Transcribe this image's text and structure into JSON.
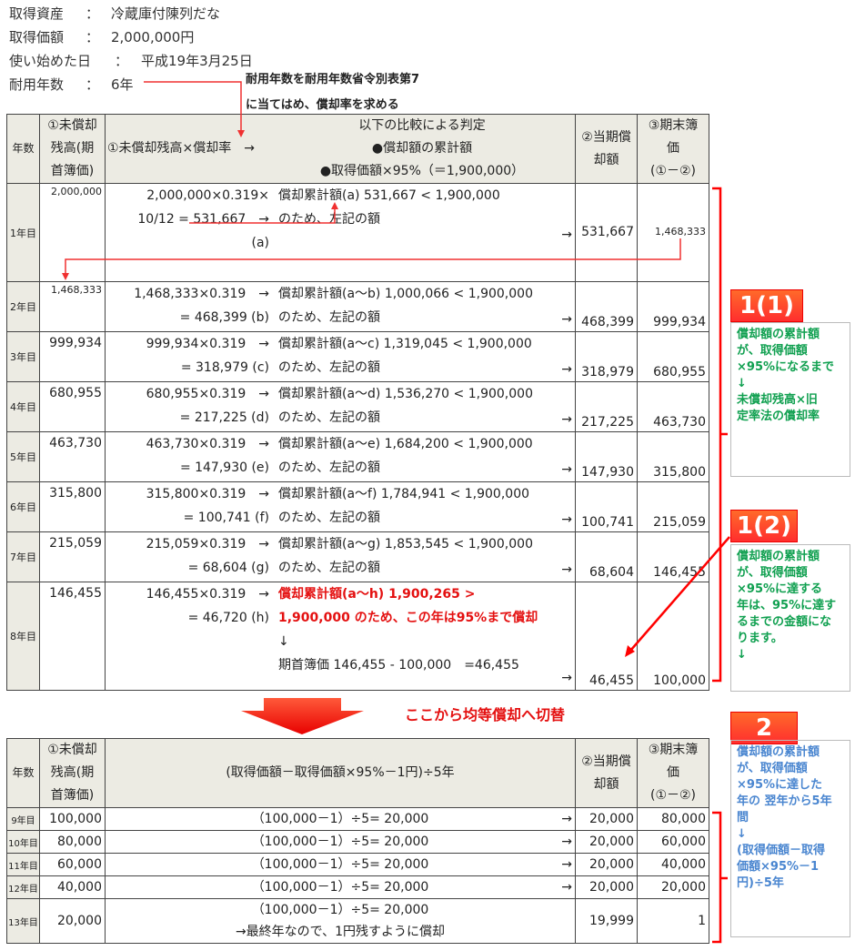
{
  "info": [
    {
      "label": "取得資産",
      "sep": "：",
      "value": "冷蔵庫付陳列だな"
    },
    {
      "label": "取得価額",
      "sep": "：",
      "value": "2,000,000円"
    },
    {
      "label": "使い始めた日",
      "sep": "：",
      "value": "平成19年3月25日"
    },
    {
      "label": "耐用年数",
      "sep": "：",
      "value": "6年"
    }
  ],
  "note": {
    "line1": "耐用年数を耐用年数省令別表第7",
    "line2": "に当てはめ、償却率を求める"
  },
  "table1": {
    "headers": {
      "year": "年数",
      "col1": [
        "①未償却",
        "残高(期",
        "首簿価)"
      ],
      "calc": "①未償却残高×償却率　→",
      "judge": [
        "以下の比較による判定",
        "●償却額の累計額",
        "●取得価額×95%（＝1,900,000）"
      ],
      "col2": [
        "②当期償",
        "却額"
      ],
      "col3": [
        "③期末簿",
        "価",
        "(①－②)"
      ]
    },
    "rows": [
      {
        "year": "1年目",
        "col1": "2,000,000",
        "calc": [
          "2,000,000×0.319×",
          "10/12 = 531,667　→",
          "(a)"
        ],
        "judge": [
          "償却累計額(a) 531,667 < 1,900,000",
          "のため、左記の額"
        ],
        "arrow": "→",
        "col2": "531,667",
        "col3": "1,468,333"
      },
      {
        "year": "2年目",
        "col1": "1,468,333",
        "calc": [
          "1,468,333×0.319　→",
          "= 468,399 (b)"
        ],
        "judge": [
          "償却累計額(a～b) 1,000,066 < 1,900,000",
          "のため、左記の額"
        ],
        "arrow": "→",
        "col2": "468,399",
        "col3": "999,934"
      },
      {
        "year": "3年目",
        "col1": "999,934",
        "calc": [
          "999,934×0.319　→",
          "= 318,979 (c)"
        ],
        "judge": [
          "償却累計額(a～c) 1,319,045 < 1,900,000",
          "のため、左記の額"
        ],
        "arrow": "→",
        "col2": "318,979",
        "col3": "680,955"
      },
      {
        "year": "4年目",
        "col1": "680,955",
        "calc": [
          "680,955×0.319　→",
          "= 217,225 (d)"
        ],
        "judge": [
          "償却累計額(a～d) 1,536,270 < 1,900,000",
          "のため、左記の額"
        ],
        "arrow": "→",
        "col2": "217,225",
        "col3": "463,730"
      },
      {
        "year": "5年目",
        "col1": "463,730",
        "calc": [
          "463,730×0.319　→",
          "= 147,930 (e)"
        ],
        "judge": [
          "償却累計額(a～e) 1,684,200 < 1,900,000",
          "のため、左記の額"
        ],
        "arrow": "→",
        "col2": "147,930",
        "col3": "315,800"
      },
      {
        "year": "6年目",
        "col1": "315,800",
        "calc": [
          "315,800×0.319　→",
          "= 100,741 (f)"
        ],
        "judge": [
          "償却累計額(a～f) 1,784,941 < 1,900,000",
          "のため、左記の額"
        ],
        "arrow": "→",
        "col2": "100,741",
        "col3": "215,059"
      },
      {
        "year": "7年目",
        "col1": "215,059",
        "calc": [
          "215,059×0.319　→",
          "= 68,604 (g)"
        ],
        "judge": [
          "償却累計額(a～g) 1,853,545 < 1,900,000",
          "のため、左記の額"
        ],
        "arrow": "→",
        "col2": "68,604",
        "col3": "146,455"
      },
      {
        "year": "8年目",
        "col1": "146,455",
        "calc": [
          "146,455×0.319　→",
          "= 46,720 (h)"
        ],
        "judge": [
          "償却累計額(a～h) 1,900,265 >",
          "1,900,000 のため、この年は95%まで償却",
          "↓",
          "期首簿価 146,455 - 100,000　=46,455"
        ],
        "arrow": "→",
        "col2": "46,455",
        "col3": "100,000"
      }
    ]
  },
  "switch_text": "ここから均等償却へ切替",
  "table2": {
    "headers": {
      "year": "年数",
      "col1": [
        "①未償却",
        "残高(期",
        "首簿価)"
      ],
      "calc": "(取得価額－取得価額×95%－1円)÷5年",
      "col2": [
        "②当期償",
        "却額"
      ],
      "col3": [
        "③期末簿",
        "価",
        "(①－②)"
      ]
    },
    "rows": [
      {
        "year": "9年目",
        "col1": "100,000",
        "calc": [
          "（100,000－1）÷5= 20,000"
        ],
        "arrow": "→",
        "col2": "20,000",
        "col3": "80,000"
      },
      {
        "year": "10年目",
        "col1": "80,000",
        "calc": [
          "（100,000－1）÷5= 20,000"
        ],
        "arrow": "→",
        "col2": "20,000",
        "col3": "60,000"
      },
      {
        "year": "11年目",
        "col1": "60,000",
        "calc": [
          "（100,000－1）÷5= 20,000"
        ],
        "arrow": "→",
        "col2": "20,000",
        "col3": "40,000"
      },
      {
        "year": "12年目",
        "col1": "40,000",
        "calc": [
          "（100,000－1）÷5= 20,000"
        ],
        "arrow": "→",
        "col2": "20,000",
        "col3": "20,000"
      },
      {
        "year": "13年目",
        "col1": "20,000",
        "calc": [
          "（100,000－1）÷5= 20,000",
          "→最終年なので、1円残すように償却"
        ],
        "arrow": "",
        "col2": "19,999",
        "col3": "1"
      }
    ]
  },
  "callouts": [
    {
      "label": "1(1)",
      "text": [
        "償却額の累計額",
        "が、取得価額",
        "×95%になるまで",
        "↓",
        "未償却残高×旧",
        "定率法の償却率"
      ]
    },
    {
      "label": "1(2)",
      "text": [
        "償却額の累計額",
        "が、取得価額",
        "×95%に達する",
        "年は、95%に達す",
        "るまでの金額にな",
        "ります。",
        "↓"
      ]
    },
    {
      "label": "2",
      "text": [
        "償却額の累計額",
        "が、取得価額",
        "×95%に達した",
        "年の 翌年から5年",
        "間",
        "↓",
        "(取得価額－取得",
        "価額×95%－1",
        "円)÷5年"
      ]
    }
  ],
  "colors": {
    "accent_red": "#e41010",
    "green_text": "#10a050",
    "blue_text": "#4a86d0",
    "header_bg": "#ecebe3"
  }
}
